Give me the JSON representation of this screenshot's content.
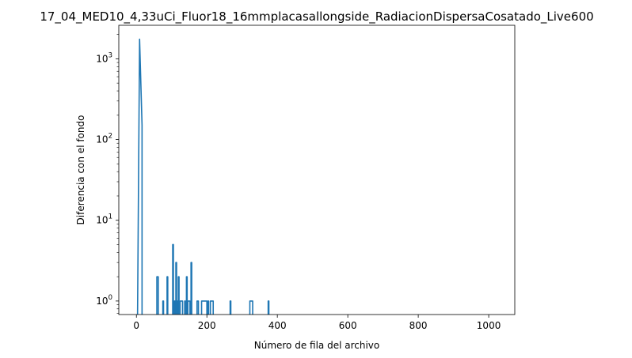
{
  "chart_data": {
    "type": "line",
    "title": "17_04_MED10_4,33uCi_Fluor18_16mmplacasallongside_RadiacionDispersaCosatado_Live600",
    "xlabel": "Número de fila del archivo",
    "ylabel": "Diferencia con el fondo",
    "xlim": [
      -50,
      1074
    ],
    "ylim": [
      0.68,
      2600
    ],
    "yscale": "log",
    "grid": false,
    "line_color": "#1f77b4",
    "x_ticks": [
      {
        "value": 0,
        "label": "0"
      },
      {
        "value": 200,
        "label": "200"
      },
      {
        "value": 400,
        "label": "400"
      },
      {
        "value": 600,
        "label": "600"
      },
      {
        "value": 800,
        "label": "800"
      },
      {
        "value": 1000,
        "label": "1000"
      }
    ],
    "y_ticks": [
      {
        "value": 1,
        "base": "10",
        "exp": "0"
      },
      {
        "value": 10,
        "base": "10",
        "exp": "1"
      },
      {
        "value": 100,
        "base": "10",
        "exp": "2"
      },
      {
        "value": 1000,
        "base": "10",
        "exp": "3"
      }
    ],
    "series": [
      {
        "segments": [
          [
            [
              3,
              0.5
            ],
            [
              9,
              1750
            ],
            [
              16,
              150
            ],
            [
              16,
              0.5
            ]
          ],
          [
            [
              58,
              0.5
            ],
            [
              58,
              2
            ],
            [
              62,
              2
            ],
            [
              62,
              0.5
            ]
          ],
          [
            [
              75,
              0.5
            ],
            [
              75,
              1
            ],
            [
              77,
              1
            ],
            [
              77,
              0.5
            ]
          ],
          [
            [
              87,
              0.5
            ],
            [
              87,
              2
            ],
            [
              89,
              2
            ],
            [
              89,
              0.5
            ]
          ],
          [
            [
              103,
              0.5
            ],
            [
              103,
              5
            ],
            [
              105,
              5
            ],
            [
              105,
              0.5
            ]
          ],
          [
            [
              108,
              0.5
            ],
            [
              108,
              1
            ],
            [
              110,
              1
            ],
            [
              110,
              0.5
            ]
          ],
          [
            [
              112,
              0.5
            ],
            [
              112,
              3
            ],
            [
              114,
              3
            ],
            [
              114,
              0.5
            ]
          ],
          [
            [
              116,
              0.5
            ],
            [
              116,
              1
            ],
            [
              118,
              1
            ],
            [
              118,
              0.5
            ]
          ],
          [
            [
              119,
              0.5
            ],
            [
              119,
              2
            ],
            [
              121,
              2
            ],
            [
              121,
              0.5
            ]
          ],
          [
            [
              124,
              0.5
            ],
            [
              124,
              1
            ],
            [
              131,
              1
            ],
            [
              131,
              0.5
            ]
          ],
          [
            [
              137,
              0.5
            ],
            [
              137,
              1
            ],
            [
              139,
              1
            ],
            [
              139,
              0.5
            ]
          ],
          [
            [
              142,
              0.5
            ],
            [
              142,
              2
            ],
            [
              144,
              2
            ],
            [
              144,
              0.5
            ]
          ],
          [
            [
              146,
              0.5
            ],
            [
              146,
              1
            ],
            [
              152,
              1
            ],
            [
              152,
              0.5
            ]
          ],
          [
            [
              155,
              0.5
            ],
            [
              155,
              3
            ],
            [
              157,
              3
            ],
            [
              157,
              0.5
            ]
          ],
          [
            [
              172,
              0.5
            ],
            [
              172,
              1
            ],
            [
              176,
              1
            ],
            [
              176,
              0.5
            ]
          ],
          [
            [
              185,
              0.5
            ],
            [
              185,
              1
            ],
            [
              200,
              1
            ],
            [
              200,
              0.5
            ]
          ],
          [
            [
              203,
              0.5
            ],
            [
              203,
              1
            ],
            [
              205,
              1
            ],
            [
              205,
              0.5
            ]
          ],
          [
            [
              210,
              0.5
            ],
            [
              210,
              1
            ],
            [
              218,
              1
            ],
            [
              218,
              0.5
            ]
          ],
          [
            [
              266,
              0.5
            ],
            [
              266,
              1
            ],
            [
              268,
              1
            ],
            [
              268,
              0.5
            ]
          ],
          [
            [
              322,
              0.5
            ],
            [
              322,
              1
            ],
            [
              330,
              1
            ],
            [
              330,
              0.5
            ]
          ],
          [
            [
              374,
              0.5
            ],
            [
              374,
              1
            ],
            [
              376,
              1
            ],
            [
              376,
              0.5
            ]
          ]
        ]
      }
    ]
  }
}
